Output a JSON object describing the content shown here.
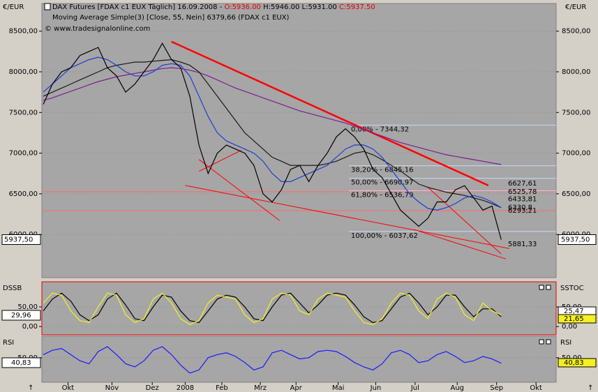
{
  "chart_data": [
    {
      "type": "line",
      "title_parts": [
        "DAX Futures [FDAX c1 EUX  Täglich] 16.09.2008 - ",
        "O:5936.00",
        " H:5946.00 L:5931.00 ",
        "C:5937.50"
      ],
      "subtitle": "Moving Average Simple(3) [Close, 55, Nein] 6379,66 (FDAX c1 EUX)",
      "source": "© www.tradesignalonline.com",
      "y_label": "€/EUR",
      "last_label": "5937,50",
      "x": [
        0,
        1,
        2,
        3,
        4,
        5,
        6,
        7,
        8,
        9,
        10,
        11,
        12,
        13,
        14,
        15,
        16,
        17,
        18,
        19,
        20,
        21,
        22,
        23,
        24,
        25,
        26,
        27,
        28,
        29,
        30,
        31,
        32,
        33,
        34,
        35,
        36,
        37,
        38,
        39,
        40,
        41,
        42,
        43,
        44,
        45,
        46,
        47,
        48,
        49,
        50
      ],
      "xlim": [
        0,
        56
      ],
      "ylim": [
        5470,
        8840
      ],
      "yticks": [
        {
          "value": 6000,
          "label": "6000,00"
        },
        {
          "value": 6500,
          "label": "6500,00"
        },
        {
          "value": 7000,
          "label": "7000,00"
        },
        {
          "value": 7500,
          "label": "7500,00"
        },
        {
          "value": 8000,
          "label": "8000,00"
        },
        {
          "value": 8500,
          "label": "8500,00"
        }
      ],
      "series": [
        {
          "color": "#7a1f8f",
          "values": [
            7650,
            7680,
            7720,
            7760,
            7800,
            7840,
            7880,
            7910,
            7940,
            7960,
            7980,
            8000,
            8020,
            8040,
            8050,
            8040,
            8020,
            7990,
            7950,
            7900,
            7850,
            7800,
            7760,
            7720,
            7680,
            7640,
            7600,
            7560,
            7520,
            7490,
            7460,
            7430,
            7400,
            7370,
            7330,
            7290,
            7250,
            7210,
            7170,
            7130,
            7100,
            7070,
            7040,
            7010,
            6980,
            6960,
            6940,
            6920,
            6900,
            6880,
            6860
          ]
        },
        {
          "color": "#1a1a1a",
          "values": [
            7700,
            7750,
            7800,
            7850,
            7900,
            7950,
            8000,
            8050,
            8080,
            8100,
            8120,
            8120,
            8130,
            8140,
            8150,
            8120,
            8080,
            8000,
            7850,
            7700,
            7550,
            7400,
            7250,
            7150,
            7050,
            6950,
            6900,
            6850,
            6850,
            6850,
            6850,
            6870,
            6900,
            6950,
            7000,
            7020,
            6980,
            6920,
            6850,
            6780,
            6700,
            6620,
            6580,
            6550,
            6520,
            6500,
            6480,
            6450,
            6420,
            6380,
            6330
          ]
        },
        {
          "color": "#1f3fd0",
          "values": [
            7750,
            7850,
            7950,
            8050,
            8100,
            8150,
            8180,
            8150,
            8080,
            8000,
            7950,
            7950,
            8000,
            8080,
            8100,
            8080,
            7950,
            7700,
            7450,
            7250,
            7150,
            7100,
            7050,
            7000,
            6900,
            6750,
            6650,
            6650,
            6700,
            6750,
            6800,
            6850,
            6950,
            7050,
            7100,
            7100,
            7050,
            6950,
            6800,
            6650,
            6500,
            6400,
            6320,
            6300,
            6330,
            6380,
            6450,
            6480,
            6450,
            6400,
            6330
          ]
        },
        {
          "color": "#000000",
          "values": [
            7600,
            7850,
            8000,
            8050,
            8200,
            8250,
            8300,
            8050,
            7950,
            7750,
            7850,
            8000,
            8150,
            8350,
            8150,
            8050,
            7700,
            7100,
            6750,
            7000,
            7100,
            7050,
            7000,
            6850,
            6500,
            6400,
            6550,
            6800,
            6850,
            6650,
            6850,
            7000,
            7200,
            7300,
            7200,
            7050,
            6800,
            6700,
            6500,
            6300,
            6200,
            6100,
            6200,
            6400,
            6400,
            6550,
            6600,
            6450,
            6300,
            6350,
            5937.5
          ]
        }
      ],
      "fib_levels": [
        {
          "value": 7344.32,
          "label": "0,00% - 7344,32"
        },
        {
          "value": 6845.16,
          "label": "38,20% - 6845,16"
        },
        {
          "value": 6690.97,
          "label": "50,00% - 6690,97"
        },
        {
          "value": 6536.79,
          "label": "61,80% - 6536,79"
        },
        {
          "value": 6037.62,
          "label": "100,00% - 6037,62"
        }
      ],
      "levels": [
        {
          "value": 6627.61,
          "label": "6627,61"
        },
        {
          "value": 6525.78,
          "label": "6525,78"
        },
        {
          "value": 6433.81,
          "label": "6433,81"
        },
        {
          "value": 6330.8,
          "label": "6330,8"
        },
        {
          "value": 6293.21,
          "label": "6293,21"
        },
        {
          "value": 5881.33,
          "label": "5881,33"
        }
      ],
      "hlines": [
        6525.78,
        6293.21
      ],
      "trendlines": [
        {
          "color": "#ff0000",
          "x": [
            14,
            48.6
          ],
          "y": [
            8371,
            6603
          ]
        },
        {
          "color": "#ff0000",
          "x": [
            15.5,
            50.9
          ],
          "y": [
            6603,
            5827
          ]
        },
        {
          "color": "#ff0000",
          "x": [
            17,
            25.8
          ],
          "y": [
            6922,
            6172
          ]
        },
        {
          "color": "#ff0000",
          "x": [
            17,
            21.6
          ],
          "y": [
            6776,
            7034
          ]
        },
        {
          "color": "#ff0000",
          "x": [
            40.5,
            50.5
          ],
          "y": [
            6060,
            5700
          ]
        },
        {
          "color": "#ff0000",
          "x": [
            42,
            50
          ],
          "y": [
            6580,
            5760
          ]
        }
      ]
    },
    {
      "type": "line",
      "name_left": "DSSB",
      "name_right": "SSTOC",
      "left_value_label": "29,96",
      "right_value_labels": [
        "25,47",
        "21,65"
      ],
      "x": [
        0,
        1,
        2,
        3,
        4,
        5,
        6,
        7,
        8,
        9,
        10,
        11,
        12,
        13,
        14,
        15,
        16,
        17,
        18,
        19,
        20,
        21,
        22,
        23,
        24,
        25,
        26,
        27,
        28,
        29,
        30,
        31,
        32,
        33,
        34,
        35,
        36,
        37,
        38,
        39,
        40,
        41,
        42,
        43,
        44,
        45,
        46,
        47,
        48,
        49,
        50
      ],
      "xlim": [
        0,
        56
      ],
      "ylim": [
        -21,
        114
      ],
      "yticks": [
        {
          "value": 0,
          "label": "0,00"
        },
        {
          "value": 50,
          "label": "50,00"
        }
      ],
      "series": [
        {
          "color": "#000000",
          "values": [
            40,
            70,
            85,
            65,
            30,
            15,
            30,
            70,
            85,
            55,
            20,
            15,
            50,
            80,
            75,
            40,
            15,
            10,
            40,
            70,
            80,
            75,
            50,
            20,
            15,
            50,
            80,
            85,
            60,
            35,
            55,
            80,
            85,
            80,
            55,
            25,
            10,
            15,
            45,
            75,
            85,
            60,
            30,
            50,
            80,
            80,
            50,
            25,
            45,
            45,
            25
          ]
        },
        {
          "color": "#f5f020",
          "values": [
            60,
            85,
            80,
            40,
            15,
            10,
            50,
            85,
            80,
            30,
            10,
            20,
            70,
            85,
            60,
            20,
            5,
            15,
            60,
            80,
            75,
            70,
            30,
            10,
            20,
            70,
            85,
            80,
            40,
            30,
            70,
            85,
            80,
            75,
            40,
            10,
            5,
            20,
            60,
            85,
            80,
            40,
            20,
            70,
            85,
            75,
            30,
            15,
            60,
            40,
            30
          ]
        }
      ]
    },
    {
      "type": "line",
      "name_left": "RSI",
      "name_right": "RSI",
      "left_value_label": "40,83",
      "right_value_labels": [
        "40,83"
      ],
      "x": [
        0,
        1,
        2,
        3,
        4,
        5,
        6,
        7,
        8,
        9,
        10,
        11,
        12,
        13,
        14,
        15,
        16,
        17,
        18,
        19,
        20,
        21,
        22,
        23,
        24,
        25,
        26,
        27,
        28,
        29,
        30,
        31,
        32,
        33,
        34,
        35,
        36,
        37,
        38,
        39,
        40,
        41,
        42,
        43,
        44,
        45,
        46,
        47,
        48,
        49,
        50
      ],
      "xlim": [
        0,
        56
      ],
      "ylim": [
        10,
        85
      ],
      "yticks": [
        {
          "value": 50,
          "label": "50,00"
        }
      ],
      "xticks": [
        {
          "value": 2.7,
          "label": "Okt"
        },
        {
          "value": 7.5,
          "label": "Nov"
        },
        {
          "value": 11.9,
          "label": "Dez"
        },
        {
          "value": 15.5,
          "label": "2008"
        },
        {
          "value": 19.5,
          "label": "Feb"
        },
        {
          "value": 23.7,
          "label": "Mrz"
        },
        {
          "value": 27.6,
          "label": "Apr"
        },
        {
          "value": 32.2,
          "label": "Mai"
        },
        {
          "value": 36.3,
          "label": "Jun"
        },
        {
          "value": 40.6,
          "label": "Jul"
        },
        {
          "value": 45.2,
          "label": "Aug"
        },
        {
          "value": 49.5,
          "label": "Sep"
        },
        {
          "value": 53.8,
          "label": "Okt"
        }
      ],
      "series": [
        {
          "color": "#1a1aff",
          "values": [
            55,
            62,
            65,
            55,
            45,
            40,
            60,
            68,
            55,
            40,
            35,
            45,
            62,
            68,
            55,
            38,
            25,
            30,
            50,
            55,
            58,
            52,
            42,
            30,
            35,
            58,
            62,
            55,
            48,
            50,
            60,
            62,
            60,
            52,
            42,
            35,
            30,
            40,
            58,
            62,
            55,
            42,
            45,
            55,
            60,
            52,
            42,
            45,
            52,
            48,
            41
          ]
        }
      ]
    }
  ]
}
